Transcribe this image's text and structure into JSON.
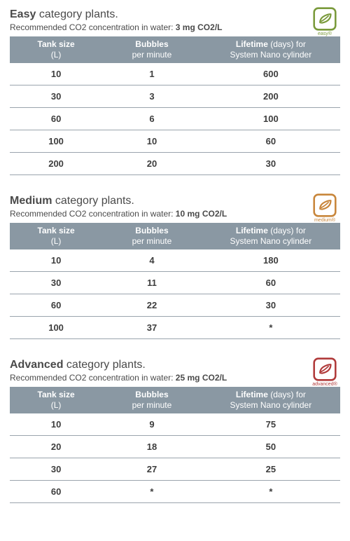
{
  "header_bg": "#8a98a3",
  "header_text_color": "#ffffff",
  "body_text_color": "#4a4a4a",
  "row_border_color": "#9aa4ad",
  "columns": {
    "c1_bold": "Tank size",
    "c1_sub": "(L)",
    "c2_bold": "Bubbles",
    "c2_sub": "per minute",
    "c3_bold": "Lifetime",
    "c3_rest": " (days) for",
    "c3_sub": "System Nano cylinder"
  },
  "sections": [
    {
      "title_bold": "Easy",
      "title_rest": " category plants.",
      "subtitle_pre": "Recommended CO2 concentration in water: ",
      "subtitle_bold": "3 mg CO2/L",
      "badge_color": "#7a9a3b",
      "badge_label": "easy®",
      "rows": [
        {
          "a": "10",
          "b": "1",
          "c": "600"
        },
        {
          "a": "30",
          "b": "3",
          "c": "200"
        },
        {
          "a": "60",
          "b": "6",
          "c": "100"
        },
        {
          "a": "100",
          "b": "10",
          "c": "60"
        },
        {
          "a": "200",
          "b": "20",
          "c": "30"
        }
      ]
    },
    {
      "title_bold": "Medium",
      "title_rest": " category plants.",
      "subtitle_pre": "Recommended CO2 concentration in water: ",
      "subtitle_bold": "10 mg CO2/L",
      "badge_color": "#c8863b",
      "badge_label": "medium®",
      "rows": [
        {
          "a": "10",
          "b": "4",
          "c": "180"
        },
        {
          "a": "30",
          "b": "11",
          "c": "60"
        },
        {
          "a": "60",
          "b": "22",
          "c": "30"
        },
        {
          "a": "100",
          "b": "37",
          "c": "*"
        }
      ]
    },
    {
      "title_bold": "Advanced",
      "title_rest": " category plants.",
      "subtitle_pre": "Recommended CO2 concentration in water: ",
      "subtitle_bold": "25 mg CO2/L",
      "badge_color": "#b03a3a",
      "badge_label": "advanced®",
      "rows": [
        {
          "a": "10",
          "b": "9",
          "c": "75"
        },
        {
          "a": "20",
          "b": "18",
          "c": "50"
        },
        {
          "a": "30",
          "b": "27",
          "c": "25"
        },
        {
          "a": "60",
          "b": "*",
          "c": "*"
        }
      ]
    }
  ]
}
